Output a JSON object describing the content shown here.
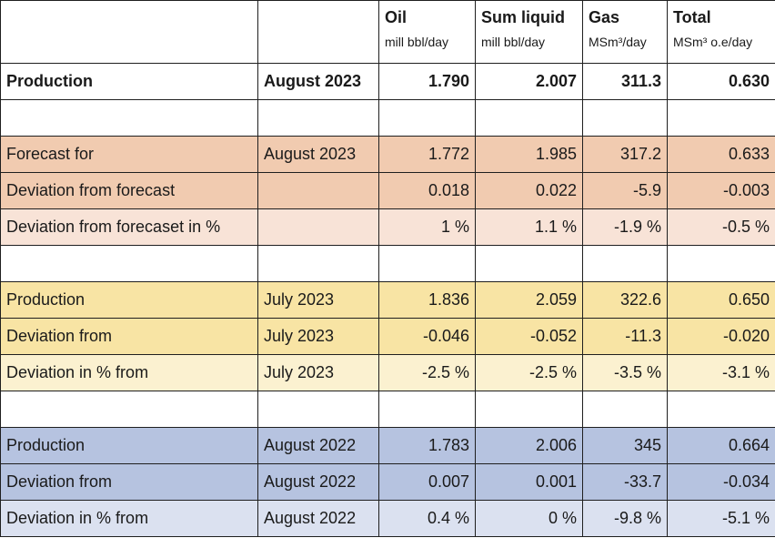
{
  "header": {
    "columns": [
      {
        "name": "Oil",
        "unit": "mill bbl/day"
      },
      {
        "name": "Sum liquid",
        "unit": "mill bbl/day"
      },
      {
        "name": "Gas",
        "unit": "MSm³/day"
      },
      {
        "name": "Total",
        "unit": "MSm³ o.e/day"
      }
    ]
  },
  "rows": {
    "production_current": {
      "label": "Production",
      "period": "August 2023",
      "values": [
        "1.790",
        "2.007",
        "311.3",
        "0.630"
      ]
    },
    "forecast": {
      "label": "Forecast for",
      "period": "August 2023",
      "values": [
        "1.772",
        "1.985",
        "317.2",
        "0.633"
      ]
    },
    "deviation_forecast": {
      "label": "Deviation from forecast",
      "period": "",
      "values": [
        "0.018",
        "0.022",
        "-5.9",
        "-0.003"
      ]
    },
    "deviation_forecast_pct": {
      "label": "Deviation from forecaset in %",
      "period": "",
      "values": [
        "1 %",
        "1.1 %",
        "-1.9 %",
        "-0.5 %"
      ]
    },
    "production_prev_month": {
      "label": "Production",
      "period": "July 2023",
      "values": [
        "1.836",
        "2.059",
        "322.6",
        "0.650"
      ]
    },
    "deviation_prev_month": {
      "label": "Deviation from",
      "period": "July 2023",
      "values": [
        "-0.046",
        "-0.052",
        "-11.3",
        "-0.020"
      ]
    },
    "deviation_prev_month_pct": {
      "label": "Deviation in % from",
      "period": "July 2023",
      "values": [
        "-2.5 %",
        "-2.5 %",
        "-3.5 %",
        "-3.1 %"
      ]
    },
    "production_prev_year": {
      "label": "Production",
      "period": "August 2022",
      "values": [
        "1.783",
        "2.006",
        "345",
        "0.664"
      ]
    },
    "deviation_prev_year": {
      "label": "Deviation from",
      "period": "August 2022",
      "values": [
        "0.007",
        "0.001",
        "-33.7",
        "-0.034"
      ]
    },
    "deviation_prev_year_pct": {
      "label": "Deviation in % from",
      "period": "August 2022",
      "values": [
        "0.4 %",
        "0 %",
        "-9.8 %",
        "-5.1 %"
      ]
    }
  },
  "colors": {
    "forecast_band": "#f1cbb0",
    "forecast_band_light": "#f8e3d7",
    "prev_month_band": "#f8e4a4",
    "prev_month_band_light": "#fbf1d0",
    "prev_year_band": "#b6c3e0",
    "prev_year_band_light": "#dbe1f0"
  }
}
